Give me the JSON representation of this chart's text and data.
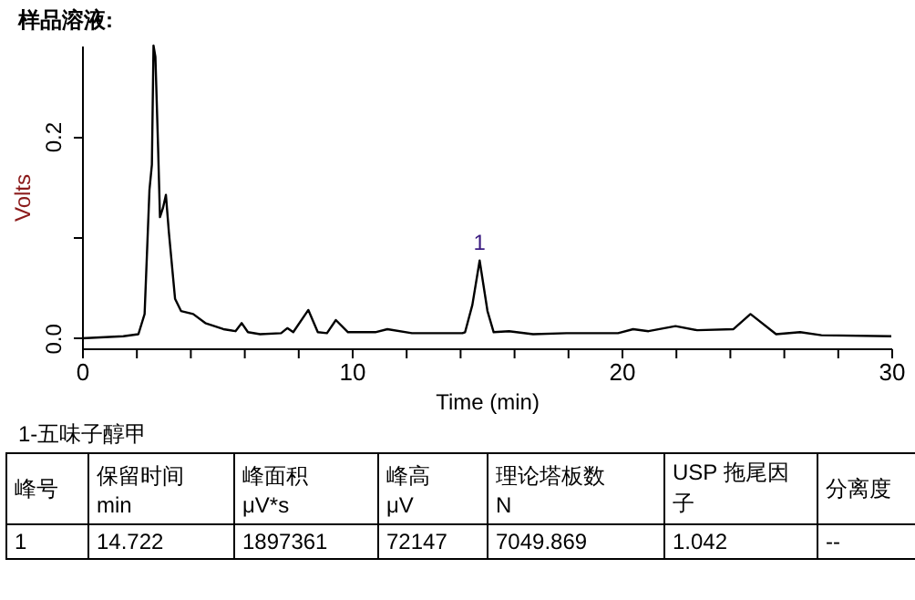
{
  "chart_data": {
    "type": "line",
    "title": "样品溶液:",
    "xlabel": "Time (min)",
    "ylabel": "Volts",
    "x": [
      0,
      1.53,
      2.09,
      2.32,
      2.5,
      2.59,
      2.65,
      2.72,
      2.82,
      2.89,
      3.0,
      3.11,
      3.22,
      3.45,
      3.67,
      4.12,
      4.57,
      5.24,
      5.69,
      5.92,
      6.15,
      6.6,
      7.38,
      7.61,
      7.83,
      8.39,
      8.74,
      9.08,
      9.41,
      9.86,
      10.87,
      11.32,
      12.23,
      14.1,
      14.2,
      14.47,
      14.74,
      15.03,
      15.26,
      15.83,
      16.72,
      17.96,
      19.87,
      20.43,
      21.0,
      22.0,
      22.8,
      24.15,
      24.78,
      25.73,
      26.62,
      27.41,
      30
    ],
    "series": [
      {
        "color": "#000000",
        "values": [
          0.0,
          0.002,
          0.004,
          0.024,
          0.147,
          0.172,
          0.29,
          0.279,
          0.189,
          0.12,
          0.129,
          0.142,
          0.105,
          0.039,
          0.027,
          0.024,
          0.015,
          0.009,
          0.007,
          0.015,
          0.006,
          0.004,
          0.005,
          0.01,
          0.006,
          0.028,
          0.006,
          0.005,
          0.018,
          0.006,
          0.006,
          0.009,
          0.005,
          0.005,
          0.006,
          0.033,
          0.077,
          0.027,
          0.006,
          0.007,
          0.004,
          0.005,
          0.005,
          0.009,
          0.007,
          0.012,
          0.008,
          0.009,
          0.024,
          0.004,
          0.006,
          0.003,
          0.002
        ]
      }
    ],
    "xlim": [
      0,
      30
    ],
    "xticks": [
      0,
      {
        "value": 2,
        "label": null
      },
      {
        "value": 4,
        "label": null
      },
      {
        "value": 6,
        "label": null
      },
      {
        "value": 8,
        "label": null
      },
      10,
      {
        "value": 12,
        "label": null
      },
      {
        "value": 14,
        "label": null
      },
      {
        "value": 16,
        "label": null
      },
      {
        "value": 18,
        "label": null
      },
      20,
      {
        "value": 22,
        "label": null
      },
      {
        "value": 24,
        "label": null
      },
      {
        "value": 26,
        "label": null
      },
      {
        "value": 28,
        "label": null
      },
      30
    ],
    "ylim": [
      -0.01,
      0.29
    ],
    "yticks": [
      {
        "value": 0,
        "label": "0.0"
      },
      {
        "value": 0.1,
        "label": null
      },
      0.2
    ],
    "grid": false,
    "marker": "none",
    "line_style": "solid",
    "annotations": [
      {
        "text": "1",
        "x": 14.74,
        "y": 0.077
      },
      "1-五味子醇甲",
      "峰号",
      "保留时间\nmin",
      "峰面积\nμV*s",
      "峰高\nμV",
      "理论塔板数\nN",
      "USP 拖尾因子",
      "分离度",
      "1",
      "14.722",
      "1897361",
      "72147",
      "7049.869",
      "1.042",
      "--"
    ]
  }
}
